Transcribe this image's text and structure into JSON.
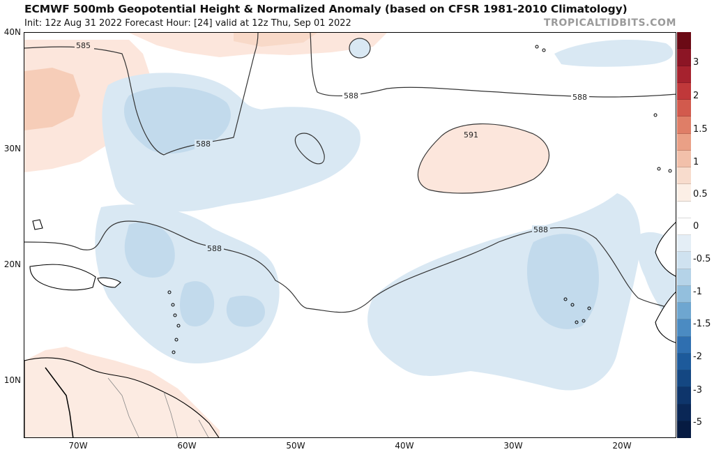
{
  "header": {
    "title": "ECMWF 500mb Geopotential Height & Normalized Anomaly (based on CFSR 1981-2010 Climatology)",
    "subtitle": "Init: 12z Aug 31 2022   Forecast Hour: [24]   valid at 12z Thu, Sep 01 2022",
    "brand": "TROPICALTIDBITS.COM"
  },
  "axes": {
    "lat_labels": [
      "40N",
      "30N",
      "20N",
      "10N"
    ],
    "lon_labels": [
      "70W",
      "60W",
      "50W",
      "40W",
      "30W",
      "20W"
    ]
  },
  "contours": {
    "labels": [
      "585",
      "588",
      "588",
      "588",
      "588",
      "591",
      "588"
    ]
  },
  "colorbar": {
    "labels": [
      "3",
      "2",
      "1.5",
      "1",
      "0.5",
      "0",
      "-0.5",
      "-1",
      "-1.5",
      "-2",
      "-3",
      "-5"
    ],
    "colors": [
      "#6b0a15",
      "#8c1525",
      "#a6222e",
      "#c0383a",
      "#d25a4d",
      "#df7e67",
      "#eaa086",
      "#f2c0aa",
      "#f8dccd",
      "#fcefe6",
      "#ffffff",
      "#ffffff",
      "#e4eef6",
      "#cfe2f0",
      "#b5d3e8",
      "#93bfdd",
      "#6ea6d0",
      "#4b8bc2",
      "#2f6fb0",
      "#1d5a9b",
      "#144782",
      "#0e356b",
      "#0a2756",
      "#061b42"
    ]
  },
  "colors": {
    "warm_anomaly": "#fce6dc",
    "warm_strong": "#f6cdb8",
    "cool_anomaly": "#d9e8f3",
    "cool_strong": "#c2daec",
    "land_outline": "#000000",
    "border": "#888888"
  }
}
